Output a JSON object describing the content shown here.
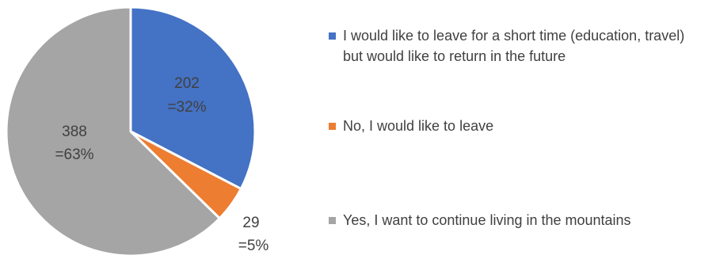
{
  "chart_data": {
    "type": "pie",
    "title": "",
    "slices": [
      {
        "name": "I would like to leave for a short time (education, travel) but would like to return in the future",
        "value": 202,
        "percent": 32,
        "label_value": "202",
        "label_percent": "=32%",
        "color": "#4472C4"
      },
      {
        "name": "No, I would like to leave",
        "value": 29,
        "percent": 5,
        "label_value": "29",
        "label_percent": "=5%",
        "color": "#ED7D31"
      },
      {
        "name": "Yes, I want to continue living in the mountains",
        "value": 388,
        "percent": 63,
        "label_value": "388",
        "label_percent": "=63%",
        "color": "#A5A5A5"
      }
    ],
    "legend_position": "right",
    "slice_border_color": "#FFFFFF"
  }
}
